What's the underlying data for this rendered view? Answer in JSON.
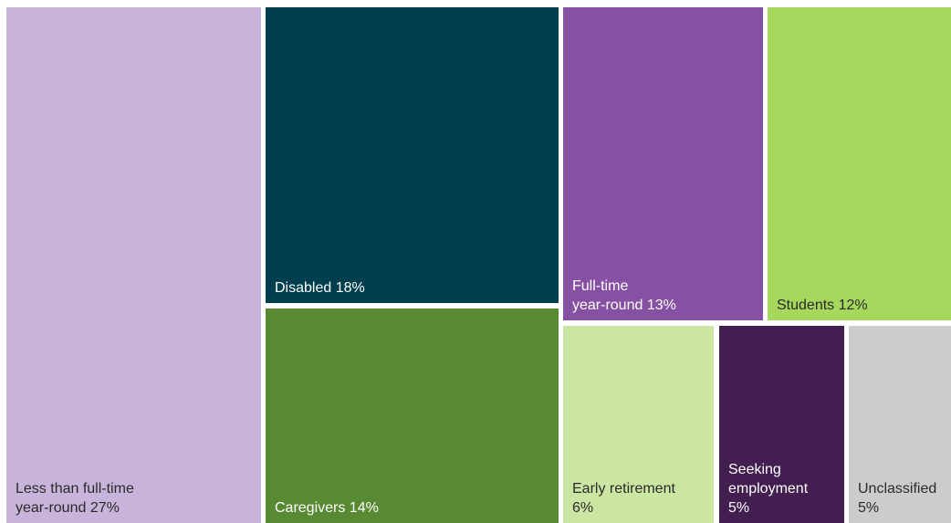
{
  "chart_data": {
    "type": "treemap",
    "title": "",
    "items": [
      {
        "key": "less_than_full_time",
        "label": "Less than full-time\nyear-round 27%",
        "category": "Less than full-time year-round",
        "value": 27,
        "color": "#c8b4da"
      },
      {
        "key": "disabled",
        "label": "Disabled 18%",
        "category": "Disabled",
        "value": 18,
        "color": "#003f4e"
      },
      {
        "key": "caregivers",
        "label": "Caregivers 14%",
        "category": "Caregivers",
        "value": 14,
        "color": "#588a34"
      },
      {
        "key": "full_time",
        "label": "Full-time\nyear-round 13%",
        "category": "Full-time year-round",
        "value": 13,
        "color": "#8651a2"
      },
      {
        "key": "students",
        "label": "Students 12%",
        "category": "Students",
        "value": 12,
        "color": "#a6d85e"
      },
      {
        "key": "early_retirement",
        "label": "Early retirement\n6%",
        "category": "Early retirement",
        "value": 6,
        "color": "#cbe5a3"
      },
      {
        "key": "seeking_employment",
        "label": "Seeking\nemployment\n 5%",
        "category": "Seeking employment",
        "value": 5,
        "color": "#431e50"
      },
      {
        "key": "unclassified",
        "label": "Unclassified\n5%",
        "category": "Unclassified",
        "value": 5,
        "color": "#cccccc"
      }
    ]
  }
}
